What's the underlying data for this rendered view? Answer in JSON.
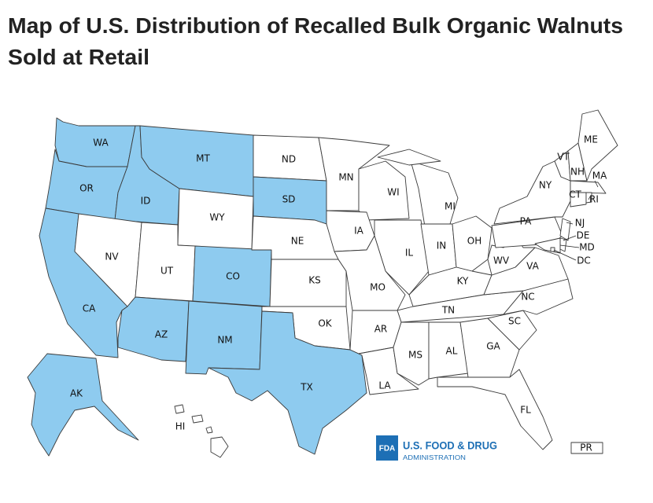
{
  "title": [
    "Map of U.S. Distribution of Recalled Bulk Organic Walnuts",
    "Sold at Retail"
  ],
  "map": {
    "highlight_color": "#8ecbef",
    "base_color": "#ffffff",
    "states": [
      {
        "label": "WA",
        "distributed": true
      },
      {
        "label": "OR",
        "distributed": true
      },
      {
        "label": "CA",
        "distributed": true
      },
      {
        "label": "ID",
        "distributed": true
      },
      {
        "label": "MT",
        "distributed": true
      },
      {
        "label": "WY",
        "distributed": false
      },
      {
        "label": "NV",
        "distributed": false
      },
      {
        "label": "UT",
        "distributed": false
      },
      {
        "label": "CO",
        "distributed": true
      },
      {
        "label": "AZ",
        "distributed": true
      },
      {
        "label": "NM",
        "distributed": true
      },
      {
        "label": "ND",
        "distributed": false
      },
      {
        "label": "SD",
        "distributed": true
      },
      {
        "label": "NE",
        "distributed": false
      },
      {
        "label": "KS",
        "distributed": false
      },
      {
        "label": "OK",
        "distributed": false
      },
      {
        "label": "TX",
        "distributed": true
      },
      {
        "label": "MN",
        "distributed": false
      },
      {
        "label": "WI",
        "distributed": false
      },
      {
        "label": "MI",
        "distributed": false
      },
      {
        "label": "IA",
        "distributed": false
      },
      {
        "label": "IL",
        "distributed": false
      },
      {
        "label": "IN",
        "distributed": false
      },
      {
        "label": "OH",
        "distributed": false
      },
      {
        "label": "MO",
        "distributed": false
      },
      {
        "label": "KY",
        "distributed": false
      },
      {
        "label": "TN",
        "distributed": false
      },
      {
        "label": "AR",
        "distributed": false
      },
      {
        "label": "LA",
        "distributed": false
      },
      {
        "label": "MS",
        "distributed": false
      },
      {
        "label": "AL",
        "distributed": false
      },
      {
        "label": "GA",
        "distributed": false
      },
      {
        "label": "FL",
        "distributed": false
      },
      {
        "label": "SC",
        "distributed": false
      },
      {
        "label": "NC",
        "distributed": false
      },
      {
        "label": "VA",
        "distributed": false
      },
      {
        "label": "WV",
        "distributed": false
      },
      {
        "label": "PA",
        "distributed": false
      },
      {
        "label": "NY",
        "distributed": false
      },
      {
        "label": "VT",
        "distributed": false
      },
      {
        "label": "NH",
        "distributed": false
      },
      {
        "label": "ME",
        "distributed": false
      },
      {
        "label": "MA",
        "distributed": false
      },
      {
        "label": "CT",
        "distributed": false
      },
      {
        "label": "RI",
        "distributed": false
      },
      {
        "label": "NJ",
        "distributed": false
      },
      {
        "label": "DE",
        "distributed": false
      },
      {
        "label": "MD",
        "distributed": false
      },
      {
        "label": "DC",
        "distributed": false
      },
      {
        "label": "AK",
        "distributed": true
      },
      {
        "label": "HI",
        "distributed": false
      },
      {
        "label": "PR",
        "distributed": false
      }
    ]
  },
  "logo": {
    "mark": "FDA",
    "name": "U.S. FOOD & DRUG",
    "subtitle": "ADMINISTRATION"
  }
}
